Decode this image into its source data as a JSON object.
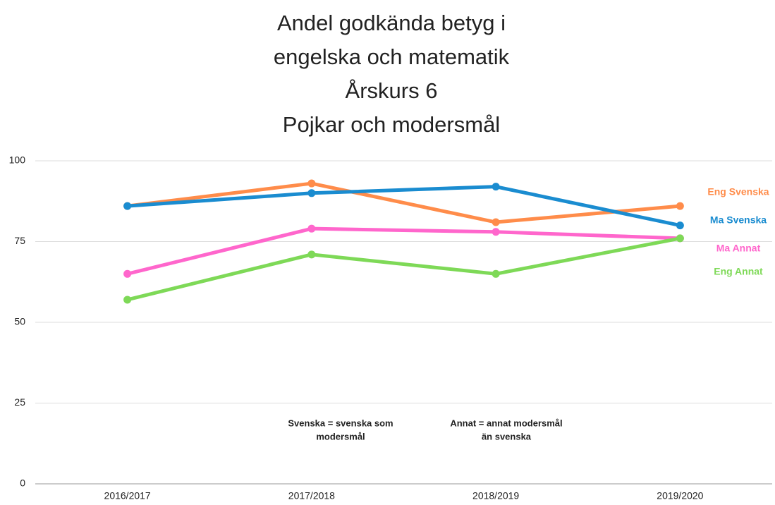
{
  "chart_data": {
    "type": "line",
    "title": [
      "Andel godkända betyg i",
      "engelska och matematik",
      "Årskurs  6",
      "Pojkar och modersmål"
    ],
    "categories": [
      "2016/2017",
      "2017/2018",
      "2018/2019",
      "2019/2020"
    ],
    "series": [
      {
        "name": "Eng Svenska",
        "color": "#ff8c4a",
        "values": [
          86,
          93,
          81,
          86
        ]
      },
      {
        "name": "Ma Svenska",
        "color": "#1a8cd0",
        "values": [
          86,
          90,
          92,
          80
        ]
      },
      {
        "name": "Ma Annat",
        "color": "#ff66cc",
        "values": [
          65,
          79,
          78,
          76
        ]
      },
      {
        "name": "Eng Annat",
        "color": "#7ed957",
        "values": [
          57,
          71,
          65,
          76
        ]
      }
    ],
    "annotations": [
      [
        "Svenska = svenska som",
        "modersmål"
      ],
      [
        "Annat = annat modersmål",
        "än svenska"
      ]
    ],
    "ylim": [
      0,
      100
    ],
    "yticks": [
      0,
      25,
      50,
      75,
      100
    ],
    "grid": true
  }
}
